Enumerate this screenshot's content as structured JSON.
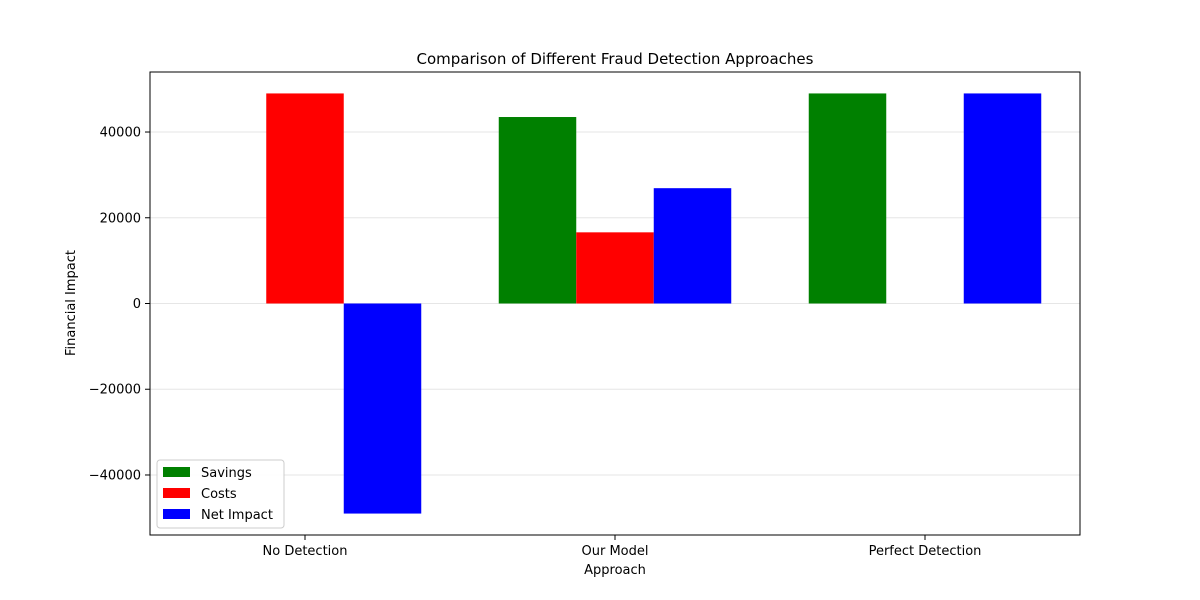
{
  "chart_data": {
    "type": "bar",
    "title": "Comparison of Different Fraud Detection Approaches",
    "xlabel": "Approach",
    "ylabel": "Financial Impact",
    "categories": [
      "No Detection",
      "Our Model",
      "Perfect Detection"
    ],
    "series": [
      {
        "name": "Savings",
        "color": "#008000",
        "values": [
          0,
          43500,
          49000
        ]
      },
      {
        "name": "Costs",
        "color": "#ff0000",
        "values": [
          49000,
          16600,
          0
        ]
      },
      {
        "name": "Net Impact",
        "color": "#0000ff",
        "values": [
          -49000,
          26900,
          49000
        ]
      }
    ],
    "ylim": [
      -54000,
      54000
    ],
    "yticks": [
      -40000,
      -20000,
      0,
      20000,
      40000
    ],
    "ytick_labels": [
      "−40000",
      "−20000",
      "0",
      "20000",
      "40000"
    ],
    "grid": true,
    "legend_position": "lower-left"
  }
}
